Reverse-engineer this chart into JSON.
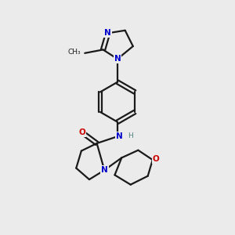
{
  "background_color": "#ebebeb",
  "bond_color": "#1a1a1a",
  "N_color": "#0000cc",
  "O_color": "#cc0000",
  "line_width": 1.6,
  "figsize": [
    3.0,
    3.0
  ],
  "dpi": 100,
  "xlim": [
    0.0,
    5.0
  ],
  "ylim": [
    -0.5,
    6.2
  ]
}
